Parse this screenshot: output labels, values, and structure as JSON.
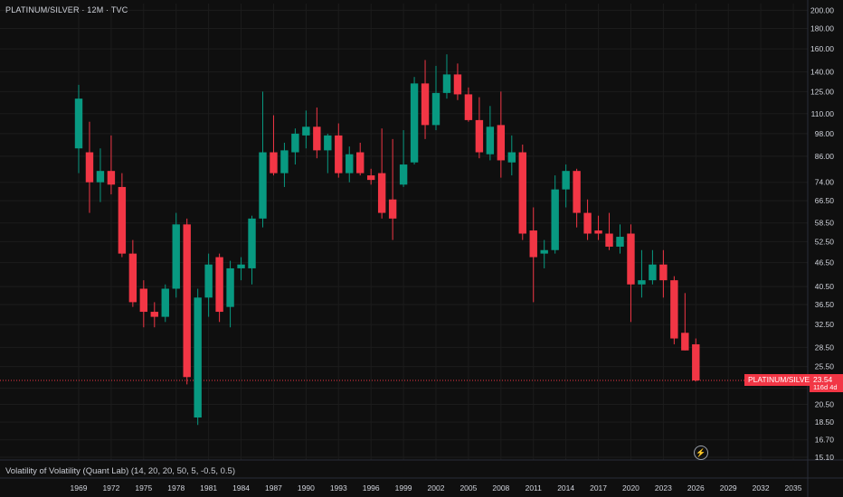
{
  "header": {
    "title": "PLATINUM/SILVER · 12M · TVC"
  },
  "indicator": {
    "label": "Volatility of Volatility (Quant Lab) (14, 20, 20, 50, 5, -0.5, 0.5)"
  },
  "price_label": {
    "symbol": "PLATINUM/SILVER",
    "price": "23.54",
    "countdown": "116d 4d"
  },
  "colors": {
    "up": "#089981",
    "down": "#f23645",
    "background": "#0f0f0f",
    "grid": "#1c1c1c",
    "text": "#d1d4dc"
  },
  "chart_data": {
    "type": "candlestick",
    "title": "PLATINUM/SILVER · 12M · TVC",
    "y_scale": "log",
    "y_ticks": [
      15.1,
      16.7,
      18.5,
      20.5,
      22.5,
      25.5,
      28.5,
      32.5,
      36.5,
      40.5,
      46.5,
      52.5,
      58.5,
      66.5,
      74.0,
      86.0,
      98.0,
      110.0,
      125.0,
      140.0,
      160.0,
      180.0,
      200.0
    ],
    "x_ticks": [
      1969,
      1972,
      1975,
      1978,
      1981,
      1984,
      1987,
      1990,
      1993,
      1996,
      1999,
      2002,
      2005,
      2008,
      2011,
      2014,
      2017,
      2020,
      2023,
      2026,
      2029,
      2032,
      2035
    ],
    "x_range": [
      1967,
      2036
    ],
    "y_range": [
      15.1,
      210
    ],
    "last_price": 23.54,
    "candles": [
      {
        "year": 1969,
        "o": 90,
        "h": 130,
        "l": 78,
        "c": 120
      },
      {
        "year": 1970,
        "o": 88,
        "h": 105,
        "l": 62,
        "c": 74
      },
      {
        "year": 1971,
        "o": 74,
        "h": 90,
        "l": 66,
        "c": 79
      },
      {
        "year": 1972,
        "o": 79,
        "h": 97,
        "l": 69,
        "c": 73
      },
      {
        "year": 1973,
        "o": 72,
        "h": 78,
        "l": 48,
        "c": 49
      },
      {
        "year": 1974,
        "o": 49,
        "h": 53,
        "l": 36,
        "c": 37
      },
      {
        "year": 1975,
        "o": 40,
        "h": 42,
        "l": 32,
        "c": 35
      },
      {
        "year": 1976,
        "o": 35,
        "h": 37,
        "l": 32,
        "c": 34
      },
      {
        "year": 1977,
        "o": 34,
        "h": 41,
        "l": 33,
        "c": 40
      },
      {
        "year": 1978,
        "o": 40,
        "h": 62,
        "l": 38,
        "c": 58
      },
      {
        "year": 1979,
        "o": 58,
        "h": 60,
        "l": 23,
        "c": 24
      },
      {
        "year": 1980,
        "o": 19,
        "h": 40,
        "l": 18.2,
        "c": 38
      },
      {
        "year": 1981,
        "o": 38,
        "h": 49,
        "l": 34,
        "c": 46
      },
      {
        "year": 1982,
        "o": 48,
        "h": 49,
        "l": 33,
        "c": 35
      },
      {
        "year": 1983,
        "o": 36,
        "h": 47,
        "l": 32,
        "c": 45
      },
      {
        "year": 1984,
        "o": 45,
        "h": 48,
        "l": 42,
        "c": 46
      },
      {
        "year": 1985,
        "o": 45,
        "h": 61,
        "l": 41,
        "c": 60
      },
      {
        "year": 1986,
        "o": 60,
        "h": 125,
        "l": 57,
        "c": 88
      },
      {
        "year": 1987,
        "o": 88,
        "h": 109,
        "l": 77,
        "c": 78
      },
      {
        "year": 1988,
        "o": 78,
        "h": 93,
        "l": 72,
        "c": 89
      },
      {
        "year": 1989,
        "o": 88,
        "h": 101,
        "l": 82,
        "c": 98
      },
      {
        "year": 1990,
        "o": 97,
        "h": 112,
        "l": 90,
        "c": 102
      },
      {
        "year": 1991,
        "o": 102,
        "h": 114,
        "l": 85,
        "c": 89
      },
      {
        "year": 1992,
        "o": 89,
        "h": 98,
        "l": 78,
        "c": 97
      },
      {
        "year": 1993,
        "o": 97,
        "h": 104,
        "l": 76,
        "c": 78
      },
      {
        "year": 1994,
        "o": 78,
        "h": 91,
        "l": 74,
        "c": 87
      },
      {
        "year": 1995,
        "o": 88,
        "h": 93,
        "l": 77,
        "c": 78
      },
      {
        "year": 1996,
        "o": 77,
        "h": 80,
        "l": 73,
        "c": 75
      },
      {
        "year": 1997,
        "o": 78,
        "h": 101,
        "l": 60,
        "c": 62
      },
      {
        "year": 1998,
        "o": 67,
        "h": 95,
        "l": 53,
        "c": 60
      },
      {
        "year": 1999,
        "o": 73,
        "h": 100,
        "l": 72,
        "c": 82
      },
      {
        "year": 2000,
        "o": 83,
        "h": 136,
        "l": 82,
        "c": 131
      },
      {
        "year": 2001,
        "o": 131,
        "h": 150,
        "l": 95,
        "c": 103
      },
      {
        "year": 2002,
        "o": 103,
        "h": 145,
        "l": 100,
        "c": 124
      },
      {
        "year": 2003,
        "o": 124,
        "h": 155,
        "l": 120,
        "c": 138
      },
      {
        "year": 2004,
        "o": 138,
        "h": 147,
        "l": 119,
        "c": 123
      },
      {
        "year": 2005,
        "o": 123,
        "h": 128,
        "l": 105,
        "c": 106
      },
      {
        "year": 2006,
        "o": 106,
        "h": 121,
        "l": 85,
        "c": 88
      },
      {
        "year": 2007,
        "o": 87,
        "h": 115,
        "l": 84,
        "c": 102
      },
      {
        "year": 2008,
        "o": 103,
        "h": 125,
        "l": 76,
        "c": 84
      },
      {
        "year": 2009,
        "o": 83,
        "h": 97,
        "l": 77,
        "c": 88
      },
      {
        "year": 2010,
        "o": 88,
        "h": 92,
        "l": 53,
        "c": 55
      },
      {
        "year": 2011,
        "o": 56,
        "h": 64,
        "l": 37,
        "c": 48
      },
      {
        "year": 2012,
        "o": 49,
        "h": 53,
        "l": 45,
        "c": 50
      },
      {
        "year": 2013,
        "o": 50,
        "h": 77,
        "l": 49,
        "c": 71
      },
      {
        "year": 2014,
        "o": 71,
        "h": 82,
        "l": 64,
        "c": 79
      },
      {
        "year": 2015,
        "o": 79,
        "h": 80,
        "l": 57,
        "c": 62
      },
      {
        "year": 2016,
        "o": 62,
        "h": 67,
        "l": 53,
        "c": 55
      },
      {
        "year": 2017,
        "o": 56,
        "h": 61,
        "l": 53,
        "c": 55
      },
      {
        "year": 2018,
        "o": 55,
        "h": 62,
        "l": 50,
        "c": 51
      },
      {
        "year": 2019,
        "o": 51,
        "h": 58,
        "l": 49,
        "c": 54
      },
      {
        "year": 2020,
        "o": 55,
        "h": 58,
        "l": 33,
        "c": 41
      },
      {
        "year": 2021,
        "o": 41,
        "h": 50,
        "l": 38,
        "c": 42
      },
      {
        "year": 2022,
        "o": 42,
        "h": 50,
        "l": 41,
        "c": 46
      },
      {
        "year": 2023,
        "o": 46,
        "h": 50,
        "l": 38,
        "c": 42
      },
      {
        "year": 2024,
        "o": 42,
        "h": 43,
        "l": 29,
        "c": 30
      },
      {
        "year": 2025,
        "o": 31,
        "h": 39,
        "l": 28,
        "c": 28
      },
      {
        "year": 2026,
        "o": 29,
        "h": 30,
        "l": 23.4,
        "c": 23.54
      }
    ]
  }
}
